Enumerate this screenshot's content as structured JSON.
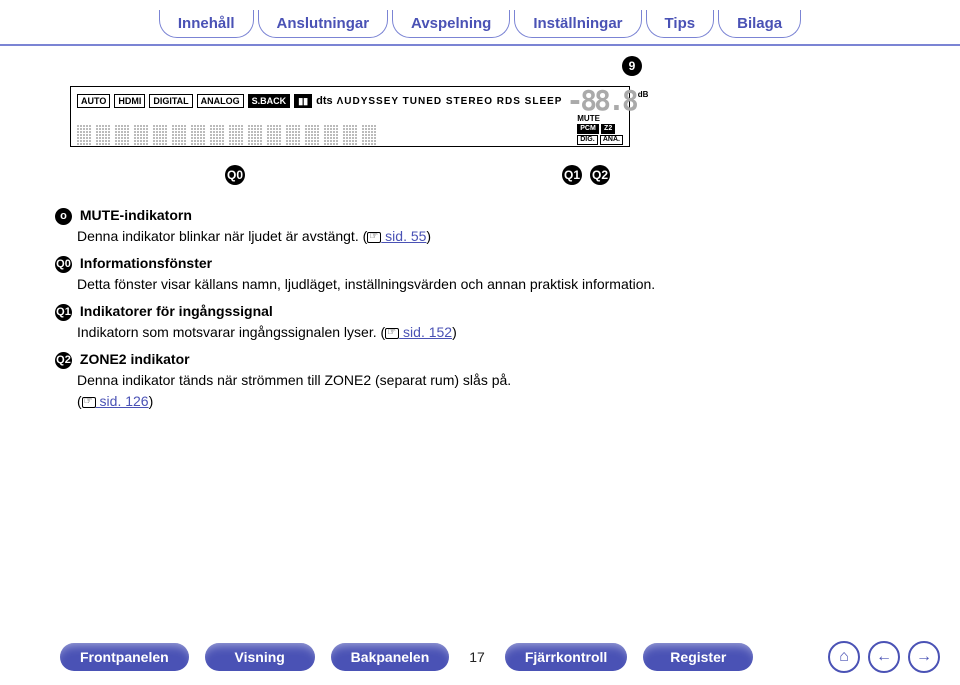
{
  "top_tabs": {
    "innehall": "Innehåll",
    "anslutningar": "Anslutningar",
    "avspelning": "Avspelning",
    "installningar": "Inställningar",
    "tips": "Tips",
    "bilaga": "Bilaga"
  },
  "display": {
    "badges": {
      "auto": "AUTO",
      "hdmi": "HDMI",
      "digital": "DIGITAL",
      "analog": "ANALOG",
      "sback": "S.BACK",
      "dolby": "▮▮",
      "dts": "dts"
    },
    "indicator_text": "ΛUDYSSEY  TUNED  STEREO  RDS  SLEEP",
    "db_label": "dB",
    "mute_label": "MUTE",
    "pcm_label": "PCM",
    "z2_label": "Z2",
    "dig_label": "DIG.",
    "ana_label": "ANA."
  },
  "callouts": {
    "c9": "9",
    "c10": "Q0",
    "c11": "Q1",
    "c12": "Q2"
  },
  "items": {
    "i9": {
      "num": "o",
      "title": "MUTE-indikatorn",
      "body": "Denna indikator blinkar när ljudet är avstängt. (",
      "link": " sid. 55",
      "after": ")"
    },
    "i10": {
      "num": "Q0",
      "title": "Informationsfönster",
      "body": "Detta fönster visar källans namn, ljudläget, inställningsvärden och annan praktisk information."
    },
    "i11": {
      "num": "Q1",
      "title": "Indikatorer för ingångssignal",
      "body": "Indikatorn som motsvarar ingångssignalen lyser. (",
      "link": " sid. 152",
      "after": ")"
    },
    "i12": {
      "num": "Q2",
      "title": "ZONE2 indikator",
      "body1": "Denna indikator tänds när strömmen till ZONE2 (separat rum) slås på.",
      "body2": "(",
      "link": " sid. 126",
      "after": ")"
    }
  },
  "bottom": {
    "frontpanelen": "Frontpanelen",
    "visning": "Visning",
    "bakpanelen": "Bakpanelen",
    "page": "17",
    "fjarr": "Fjärrkontroll",
    "register": "Register"
  }
}
